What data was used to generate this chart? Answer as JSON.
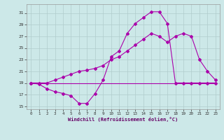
{
  "xlabel": "Windchill (Refroidissement éolien,°C)",
  "background_color": "#cce8e8",
  "grid_color": "#b0cccc",
  "line_color": "#aa00aa",
  "x_ticks": [
    0,
    1,
    2,
    3,
    4,
    5,
    6,
    7,
    8,
    9,
    10,
    11,
    12,
    13,
    14,
    15,
    16,
    17,
    18,
    19,
    20,
    21,
    22,
    23
  ],
  "y_ticks": [
    15,
    17,
    19,
    21,
    23,
    25,
    27,
    29,
    31
  ],
  "xlim": [
    -0.5,
    23.5
  ],
  "ylim": [
    14.5,
    32.5
  ],
  "line1_x": [
    0,
    1,
    2,
    3,
    4,
    5,
    6,
    7,
    8,
    9,
    10,
    11,
    12,
    13,
    14,
    15,
    16,
    17,
    18,
    19,
    20,
    21,
    22,
    23
  ],
  "line1_y": [
    19,
    18.8,
    18,
    17.5,
    17.2,
    16.8,
    15.5,
    15.5,
    17.2,
    19.5,
    23.5,
    24.5,
    27.5,
    29.2,
    30.2,
    31.2,
    31.2,
    29.2,
    19,
    19,
    19,
    19,
    19,
    19
  ],
  "line2_x": [
    0,
    1,
    2,
    3,
    4,
    5,
    6,
    7,
    8,
    9,
    10,
    11,
    12,
    13,
    14,
    15,
    16,
    17,
    18,
    19,
    20,
    21,
    22,
    23
  ],
  "line2_y": [
    19,
    19,
    19,
    19,
    19,
    19,
    19,
    19,
    19,
    19,
    19,
    19,
    19,
    19,
    19,
    19,
    19,
    19,
    19,
    19,
    19,
    19,
    19,
    19
  ],
  "line3_x": [
    0,
    1,
    2,
    3,
    4,
    5,
    6,
    7,
    8,
    9,
    10,
    11,
    12,
    13,
    14,
    15,
    16,
    17,
    18,
    19,
    20,
    21,
    22,
    23
  ],
  "line3_y": [
    19,
    19,
    19,
    19.5,
    20,
    20.5,
    21,
    21.2,
    21.5,
    22,
    23,
    23.5,
    24.5,
    25.5,
    26.5,
    27.5,
    27,
    26,
    27,
    27.5,
    27,
    23,
    21,
    19.5
  ]
}
